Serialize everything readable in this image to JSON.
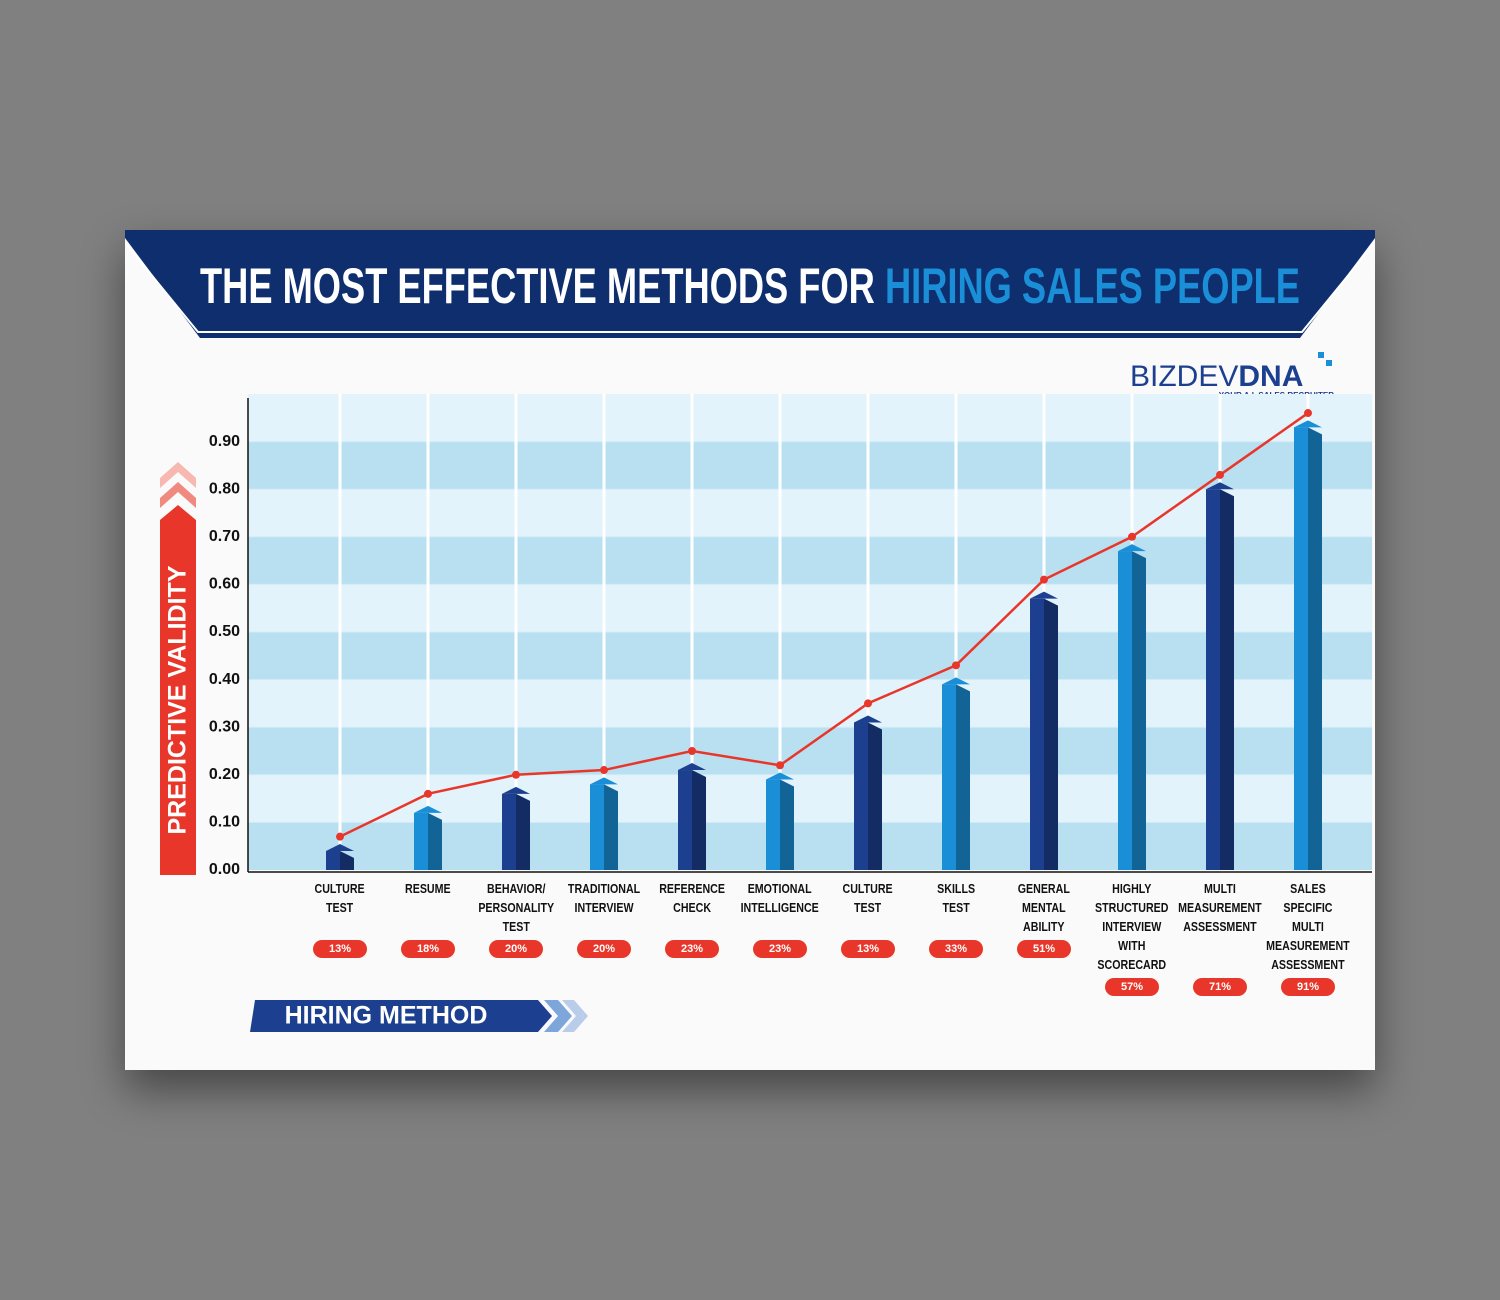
{
  "chart_data": {
    "type": "bar",
    "title": "THE MOST EFFECTIVE METHODS FOR",
    "title_highlight": "HIRING SALES PEOPLE",
    "logo": {
      "text_light": "BIZDEV",
      "text_bold": "DNA",
      "tagline": "YOUR A.I. SALES RECRUITER"
    },
    "ylabel": "PREDICTIVE VALIDITY",
    "xlabel": "HIRING METHOD",
    "categories": [
      "CULTURE\nTEST",
      "RESUME",
      "BEHAVIOR/\nPERSONALITY\nTEST",
      "TRADITIONAL\nINTERVIEW",
      "REFERENCE\nCHECK",
      "EMOTIONAL\nINTELLIGENCE",
      "CULTURE\nTEST",
      "SKILLS\nTEST",
      "GENERAL\nMENTAL\nABILITY",
      "HIGHLY\nSTRUCTURED\nINTERVIEW\nWITH\nSCORECARD",
      "MULTI\nMEASUREMENT\nASSESSMENT",
      "SALES\nSPECIFIC\nMULTI\nMEASUREMENT\nASSESSMENT"
    ],
    "series": [
      {
        "type": "bar",
        "colors": [
          "#1d3f8f",
          "#1a8fd8",
          "#1d3f8f",
          "#1a8fd8",
          "#1d3f8f",
          "#1a8fd8",
          "#1d3f8f",
          "#1a8fd8",
          "#1d3f8f",
          "#1a8fd8",
          "#1d3f8f",
          "#1a8fd8"
        ],
        "values": [
          0.04,
          0.12,
          0.16,
          0.18,
          0.21,
          0.19,
          0.31,
          0.39,
          0.57,
          0.67,
          0.8,
          0.93
        ]
      },
      {
        "type": "line",
        "color": "#e8372a",
        "values": [
          0.07,
          0.16,
          0.2,
          0.21,
          0.25,
          0.22,
          0.35,
          0.43,
          0.61,
          0.7,
          0.83,
          0.96
        ]
      }
    ],
    "percentages": {
      "values": [
        13,
        18,
        20,
        20,
        23,
        23,
        13,
        33,
        51,
        57,
        71,
        91
      ],
      "value_labels": [
        "13%",
        "18%",
        "20%",
        "20%",
        "23%",
        "23%",
        "13%",
        "33%",
        "51%",
        "57%",
        "71%",
        "91%"
      ],
      "color": "#e8372a"
    },
    "ylim": [
      0,
      1.0
    ],
    "yticks": [
      {
        "value": 0,
        "label": "0.00"
      },
      {
        "value": 0.1,
        "label": "0.10"
      },
      {
        "value": 0.2,
        "label": "0.20"
      },
      {
        "value": 0.3,
        "label": "0.30"
      },
      {
        "value": 0.4,
        "label": "0.40"
      },
      {
        "value": 0.5,
        "label": "0.50"
      },
      {
        "value": 0.6,
        "label": "0.60"
      },
      {
        "value": 0.7,
        "label": "0.70"
      },
      {
        "value": 0.8,
        "label": "0.80"
      },
      {
        "value": 0.9,
        "label": "0.90"
      }
    ],
    "grid": true
  }
}
